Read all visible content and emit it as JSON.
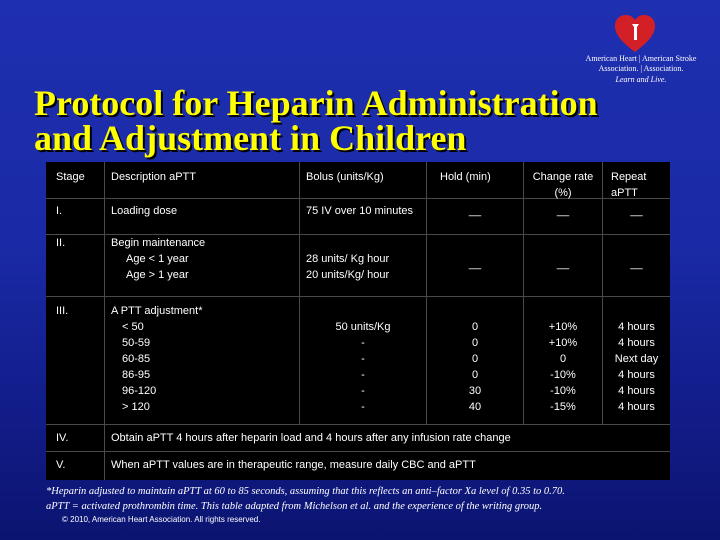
{
  "logo": {
    "line1": "American Heart | American Stroke",
    "line2": "Association. | Association.",
    "line3": "Learn and Live."
  },
  "title": {
    "line1": "Protocol for Heparin Administration",
    "line2": "and Adjustment in Children"
  },
  "table": {
    "headers": {
      "stage": "Stage",
      "description": "Description aPTT",
      "bolus": "Bolus (units/Kg)",
      "hold": "Hold (min)",
      "change": "Change rate (%)",
      "repeat": "Repeat aPTT"
    },
    "rows": [
      {
        "stage": "I.",
        "description": "Loading dose",
        "bolus": "75 IV over 10 minutes",
        "hold": "__",
        "change": "__",
        "repeat": "__"
      },
      {
        "stage": "II.",
        "description_title": "Begin maintenance",
        "description_items": [
          "Age < 1 year",
          "Age > 1 year"
        ],
        "bolus_items": [
          "28 units/ Kg hour",
          "20 units/Kg/ hour"
        ],
        "hold": "__",
        "change": "__",
        "repeat": "__"
      },
      {
        "stage": "III.",
        "description_title": "A PTT adjustment*",
        "description_items": [
          "< 50",
          "50-59",
          "60-85",
          "86-95",
          "96-120",
          "> 120"
        ],
        "bolus_items": [
          "50 units/Kg",
          "-",
          "-",
          "-",
          "-",
          "-"
        ],
        "hold_items": [
          "0",
          "0",
          "0",
          "0",
          "30",
          "40"
        ],
        "change_items": [
          "+10%",
          "+10%",
          "0",
          "-10%",
          "-10%",
          "-15%"
        ],
        "repeat_items": [
          "4 hours",
          "4 hours",
          "Next day",
          "4 hours",
          "4 hours",
          "4 hours"
        ]
      },
      {
        "stage": "IV.",
        "text": "Obtain aPTT 4 hours after heparin load and 4 hours after any infusion rate change"
      },
      {
        "stage": "V.",
        "text": "When aPTT values are in therapeutic range, measure daily CBC and aPTT"
      }
    ]
  },
  "footnote": {
    "line1": "*Heparin adjusted to maintain aPTT at 60 to 85 seconds, assuming that this reflects an anti–factor Xa level of 0.35 to 0.70.",
    "line2": "aPTT = activated prothrombin time. This table adapted from Michelson et al. and the experience of the writing group."
  },
  "copyright": "© 2010, American Heart Association. All rights reserved.",
  "colors": {
    "background": "#1a2aa6",
    "title": "#ffff00",
    "table_background": "#000000",
    "text": "#ffffff",
    "logo_heart": "#d32027"
  }
}
